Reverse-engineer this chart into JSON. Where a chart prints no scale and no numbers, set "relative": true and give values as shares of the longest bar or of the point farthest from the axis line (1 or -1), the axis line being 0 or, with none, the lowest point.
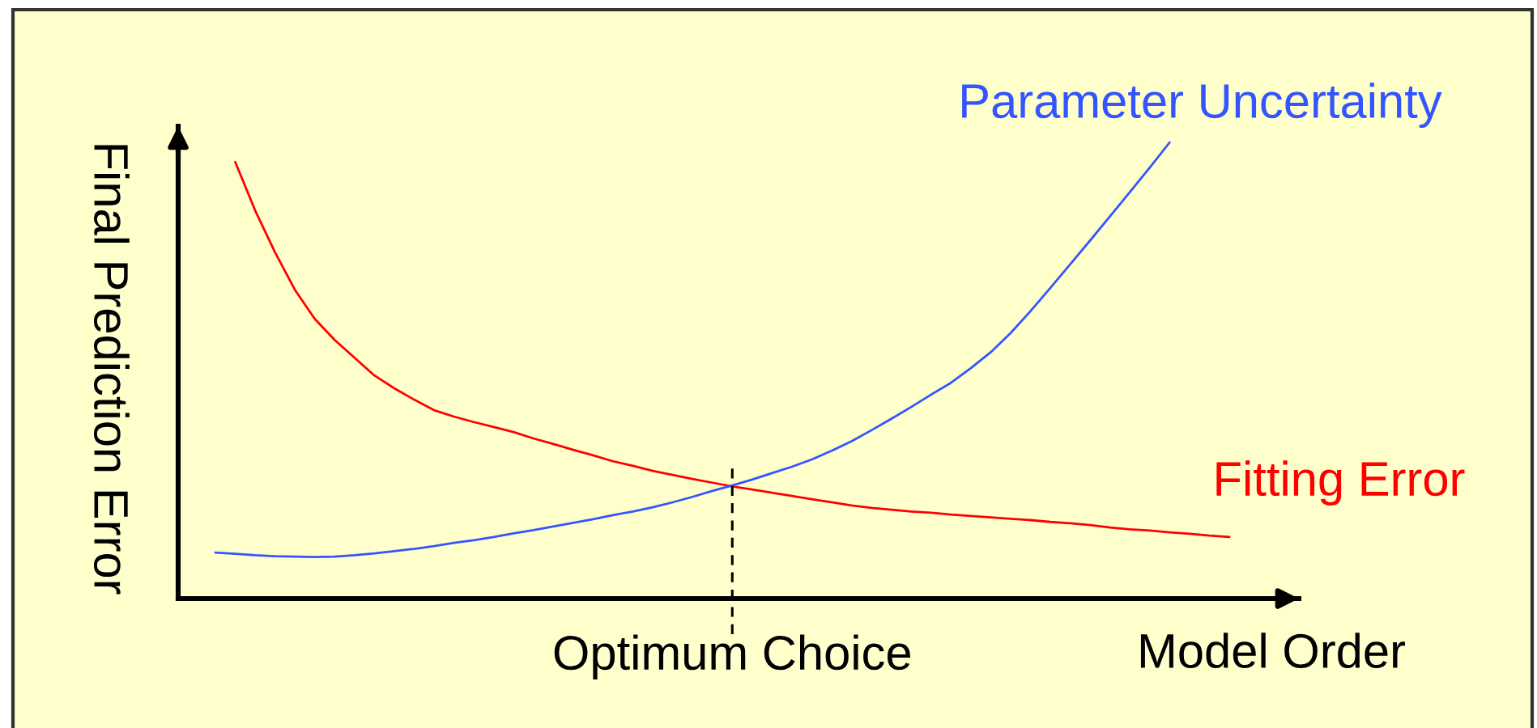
{
  "chart_data": {
    "type": "line",
    "relative": true,
    "xlabel": "Model Order",
    "ylabel": "Final Prediction Error",
    "categories": [
      null,
      null,
      null,
      null,
      null,
      null,
      null,
      null,
      null,
      null,
      null,
      null,
      null,
      null,
      null,
      null,
      null,
      null,
      null,
      null,
      null,
      null,
      null,
      null,
      null,
      null,
      null,
      null,
      null,
      null,
      null,
      null,
      null,
      null,
      null,
      null,
      null,
      null,
      null,
      null,
      null,
      null,
      null,
      null,
      null,
      null,
      null,
      null,
      null,
      null,
      null,
      null,
      null,
      null,
      null,
      null
    ],
    "series": [
      {
        "name": "Fitting Error",
        "color": "#ff0000",
        "values": [
          null,
          null,
          0.957,
          0.851,
          0.759,
          0.677,
          0.613,
          0.567,
          0.528,
          0.489,
          0.461,
          0.436,
          0.413,
          0.399,
          0.387,
          0.376,
          0.365,
          0.351,
          0.339,
          0.326,
          0.314,
          0.301,
          0.291,
          0.28,
          0.271,
          0.262,
          0.254,
          0.246,
          0.239,
          0.232,
          0.225,
          0.218,
          0.211,
          0.204,
          0.199,
          0.195,
          0.191,
          0.188,
          0.184,
          0.181,
          0.178,
          0.175,
          0.172,
          0.168,
          0.165,
          0.161,
          0.156,
          0.152,
          0.149,
          0.145,
          0.142,
          0.138,
          0.135,
          null,
          null,
          null
        ]
      },
      {
        "name": "Parameter Uncertainty",
        "color": "#3355ff",
        "values": [
          null,
          0.101,
          0.098,
          0.095,
          0.093,
          0.092,
          0.091,
          0.092,
          0.095,
          0.099,
          0.104,
          0.109,
          0.115,
          0.122,
          0.128,
          0.135,
          0.143,
          0.15,
          0.158,
          0.166,
          0.174,
          0.183,
          0.191,
          0.2,
          0.211,
          0.223,
          0.236,
          0.248,
          0.261,
          0.275,
          0.289,
          0.305,
          0.324,
          0.345,
          0.369,
          0.394,
          0.42,
          0.447,
          0.473,
          0.505,
          0.54,
          0.582,
          0.63,
          0.681,
          0.733,
          0.785,
          0.838,
          0.891,
          0.945,
          1,
          null,
          null,
          null,
          null,
          null,
          null
        ]
      }
    ],
    "annotations": [
      "Optimum Choice"
    ]
  }
}
